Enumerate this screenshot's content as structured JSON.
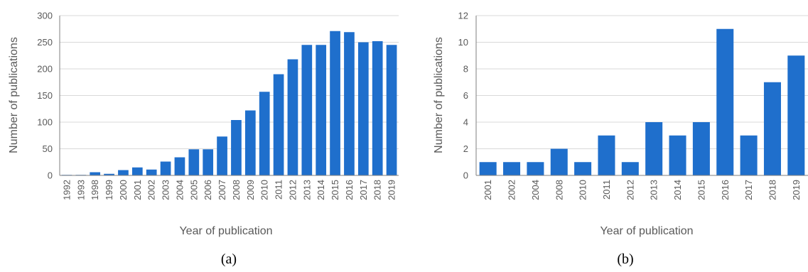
{
  "colors": {
    "bar": "#1f6fcc"
  },
  "chart_data": [
    {
      "type": "bar",
      "panel_label": "(a)",
      "xlabel": "Year of publication",
      "ylabel": "Number of publications",
      "ylim": [
        0,
        300
      ],
      "yticks": [
        0,
        50,
        100,
        150,
        200,
        250,
        300
      ],
      "grid": true,
      "categories": [
        "1992",
        "1993",
        "1998",
        "1999",
        "2000",
        "2001",
        "2002",
        "2003",
        "2004",
        "2005",
        "2006",
        "2007",
        "2008",
        "2009",
        "2010",
        "2011",
        "2012",
        "2013",
        "2014",
        "2015",
        "2016",
        "2017",
        "2018",
        "2019"
      ],
      "values": [
        1,
        1,
        6,
        3,
        10,
        15,
        11,
        26,
        34,
        49,
        49,
        73,
        104,
        122,
        157,
        190,
        218,
        245,
        245,
        271,
        269,
        250,
        252,
        245
      ]
    },
    {
      "type": "bar",
      "panel_label": "(b)",
      "xlabel": "Year of publication",
      "ylabel": "Number of publications",
      "ylim": [
        0,
        12
      ],
      "yticks": [
        0,
        2,
        4,
        6,
        8,
        10,
        12
      ],
      "grid": true,
      "categories": [
        "2001",
        "2002",
        "2004",
        "2008",
        "2010",
        "2011",
        "2012",
        "2013",
        "2014",
        "2015",
        "2016",
        "2017",
        "2018",
        "2019"
      ],
      "values": [
        1,
        1,
        1,
        2,
        1,
        3,
        1,
        4,
        3,
        4,
        11,
        3,
        7,
        9
      ]
    }
  ]
}
